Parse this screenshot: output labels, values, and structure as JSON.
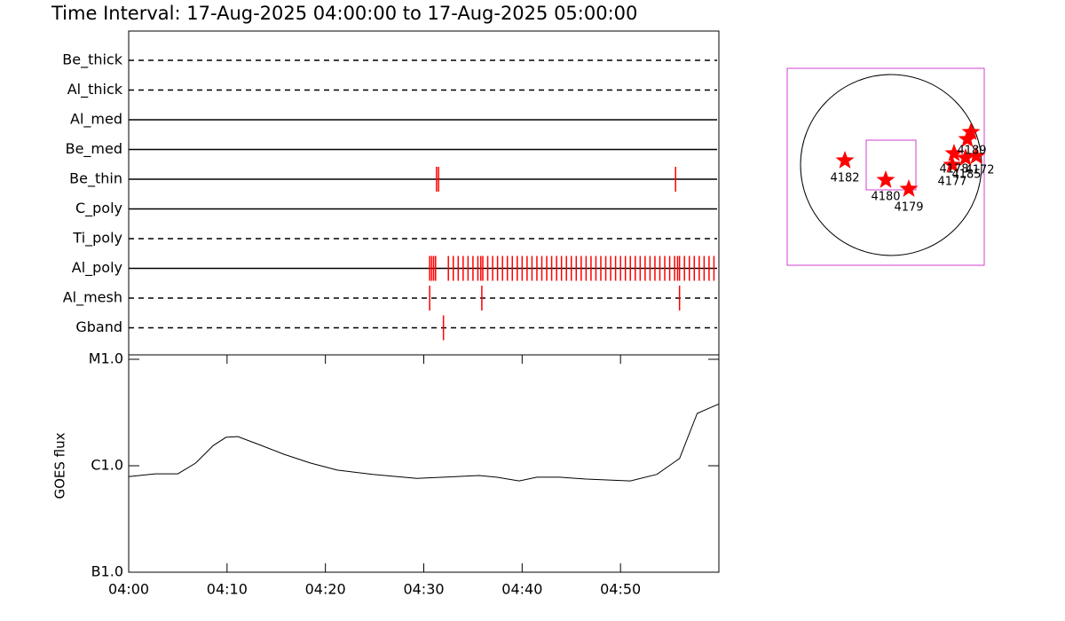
{
  "chart_data": [
    {
      "type": "event",
      "title": "Time Interval: 17-Aug-2025 04:00:00 to 17-Aug-2025 05:00:00",
      "categories": [
        "Be_thick",
        "Al_thick",
        "Al_med",
        "Be_med",
        "Be_thin",
        "C_poly",
        "Ti_poly",
        "Al_poly",
        "Al_mesh",
        "Gband"
      ],
      "line_styles": [
        "dashed",
        "dashed",
        "solid",
        "solid",
        "solid",
        "solid",
        "dashed",
        "solid",
        "dashed",
        "dashed"
      ],
      "color": "#ff0000",
      "xlim": [
        0,
        60
      ],
      "events": [
        [],
        [],
        [],
        [],
        [
          31.3,
          31.5,
          55.6
        ],
        [],
        [],
        [
          30.6,
          30.8,
          31.0,
          31.2,
          32.5,
          33.0,
          33.5,
          34.0,
          34.5,
          35.0,
          35.5,
          35.8,
          36.0,
          36.5,
          37.0,
          37.5,
          38.0,
          38.5,
          39.0,
          39.5,
          40.0,
          40.5,
          41.0,
          41.5,
          42.0,
          42.5,
          43.0,
          43.5,
          44.0,
          44.5,
          45.0,
          45.5,
          46.0,
          46.5,
          47.0,
          47.5,
          48.0,
          48.5,
          49.0,
          49.5,
          50.0,
          50.5,
          51.0,
          51.5,
          52.0,
          52.5,
          53.0,
          53.5,
          54.0,
          54.5,
          55.0,
          55.5,
          55.8,
          56.0,
          56.5,
          57.0,
          57.5,
          58.0,
          58.5,
          59.0,
          59.5
        ],
        [
          30.6,
          35.9,
          56.0
        ],
        [
          32.0
        ]
      ]
    },
    {
      "type": "line",
      "ylabel": "GOES flux",
      "log_y": true,
      "color": "#000000",
      "x": [
        0,
        2.7,
        5,
        6.8,
        8.6,
        9.9,
        11.1,
        13.1,
        15.8,
        18.5,
        21.2,
        24.8,
        29.3,
        32.0,
        35.6,
        37.4,
        39.7,
        41.5,
        43.8,
        46.5,
        51.0,
        53.7,
        56.0,
        57.8,
        59.1,
        60
      ],
      "values": [
        7.9e-07,
        8.4e-07,
        8.4e-07,
        1.06e-06,
        1.55e-06,
        1.85e-06,
        1.88e-06,
        1.6e-06,
        1.28e-06,
        1.06e-06,
        9.1e-07,
        8.3e-07,
        7.6e-07,
        7.8e-07,
        8.1e-07,
        7.8e-07,
        7.2e-07,
        7.8e-07,
        7.8e-07,
        7.5e-07,
        7.2e-07,
        8.3e-07,
        1.17e-06,
        3.1e-06,
        3.5e-06,
        3.8e-06
      ],
      "xlim": [
        0,
        60
      ],
      "xticks": [
        {
          "value": 0,
          "label": "04:00"
        },
        {
          "value": 10,
          "label": "04:10"
        },
        {
          "value": 20,
          "label": "04:20"
        },
        {
          "value": 30,
          "label": "04:30"
        },
        {
          "value": 40,
          "label": "04:40"
        },
        {
          "value": 50,
          "label": "04:50"
        }
      ],
      "ylim": [
        1e-07,
        1e-05
      ],
      "yticks": [
        {
          "value": 1e-07,
          "label": "B1.0"
        },
        {
          "value": 1e-06,
          "label": "C1.0"
        },
        {
          "value": 1e-05,
          "label": "M1.0"
        }
      ]
    }
  ],
  "map": {
    "regions": [
      "4182",
      "4180",
      "4179",
      "4177",
      "4178",
      "4185",
      "4172",
      "4189"
    ]
  }
}
